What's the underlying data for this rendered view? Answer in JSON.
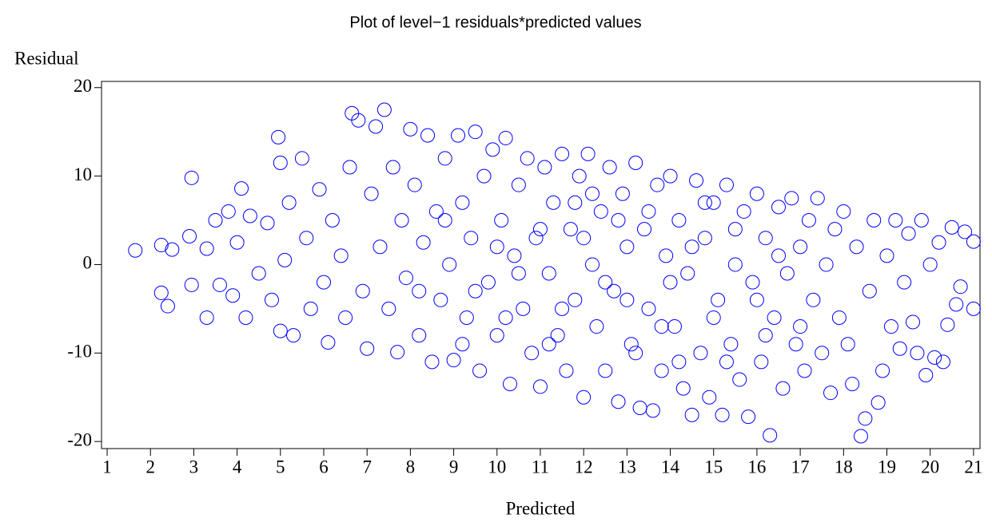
{
  "chart_data": {
    "type": "scatter",
    "title": "Plot of level−1 residuals*predicted values",
    "x_label": "Predicted",
    "y_label": "Residual",
    "color": "#0000ff",
    "xlim": [
      0.87,
      21.15
    ],
    "ylim": [
      -20.8,
      20.7
    ],
    "xticks": [
      1,
      2,
      3,
      4,
      5,
      6,
      7,
      8,
      9,
      10,
      11,
      12,
      13,
      14,
      15,
      16,
      17,
      18,
      19,
      20,
      21
    ],
    "yticks": [
      -20,
      -10,
      0,
      10,
      20
    ],
    "x": [
      1.65,
      2.25,
      2.25,
      2.4,
      2.5,
      2.9,
      2.95,
      2.95,
      3.3,
      3.3,
      3.5,
      3.6,
      3.8,
      3.9,
      4.0,
      4.1,
      4.2,
      4.3,
      4.5,
      4.7,
      4.8,
      4.95,
      5.0,
      5.0,
      5.1,
      5.2,
      5.3,
      5.5,
      5.6,
      5.7,
      5.9,
      6.0,
      6.1,
      6.2,
      6.4,
      6.5,
      6.6,
      6.65,
      6.8,
      6.9,
      7.0,
      7.1,
      7.2,
      7.3,
      7.4,
      7.5,
      7.6,
      7.7,
      7.8,
      7.9,
      8.0,
      8.1,
      8.2,
      8.3,
      8.4,
      8.5,
      8.6,
      8.7,
      8.8,
      8.9,
      9.0,
      9.1,
      9.2,
      9.3,
      9.4,
      9.5,
      9.6,
      9.7,
      9.8,
      9.9,
      10.0,
      10.1,
      10.2,
      10.3,
      10.4,
      10.5,
      10.6,
      10.7,
      10.8,
      10.9,
      11.0,
      11.1,
      11.2,
      11.3,
      11.4,
      11.5,
      11.6,
      11.7,
      11.8,
      11.9,
      12.0,
      12.1,
      12.2,
      12.3,
      12.4,
      12.5,
      12.6,
      12.7,
      12.8,
      12.9,
      13.0,
      13.1,
      13.2,
      13.3,
      13.4,
      13.5,
      13.6,
      13.7,
      13.8,
      13.9,
      14.0,
      14.1,
      14.2,
      14.3,
      14.4,
      14.5,
      14.6,
      14.7,
      14.8,
      14.9,
      15.0,
      15.1,
      15.2,
      15.3,
      15.4,
      15.5,
      15.6,
      15.7,
      15.8,
      15.9,
      16.0,
      16.1,
      16.2,
      16.3,
      16.4,
      16.5,
      16.6,
      16.7,
      16.8,
      16.9,
      17.0,
      17.1,
      17.2,
      17.3,
      17.4,
      17.5,
      17.6,
      17.7,
      17.8,
      17.9,
      18.0,
      18.1,
      18.2,
      18.3,
      18.4,
      18.5,
      18.6,
      18.7,
      18.8,
      18.9,
      19.0,
      19.1,
      19.2,
      19.3,
      19.4,
      19.5,
      19.6,
      19.7,
      19.8,
      19.9,
      20.0,
      20.1,
      20.2,
      20.3,
      20.4,
      20.5,
      20.6,
      20.7,
      20.8,
      21.0,
      21.0,
      9.5,
      10.0,
      10.5,
      11.0,
      11.5,
      12.0,
      12.5,
      13.0,
      13.5,
      14.0,
      14.5,
      15.0,
      15.5,
      16.0,
      16.5,
      17.0,
      12.2,
      13.2,
      14.2,
      11.2,
      10.2,
      15.3,
      16.2,
      11.8,
      12.8,
      13.8,
      14.8,
      9.2,
      8.8,
      8.2
    ],
    "values": [
      1.6,
      2.2,
      -3.2,
      -4.7,
      1.7,
      3.2,
      9.8,
      -2.3,
      -6,
      1.8,
      5,
      -2.3,
      6,
      -3.5,
      2.5,
      8.6,
      -6,
      5.5,
      -1,
      4.7,
      -4,
      14.4,
      11.5,
      -7.5,
      0.5,
      7,
      -8,
      12,
      3,
      -5,
      8.5,
      -2,
      -8.8,
      5,
      1,
      -6,
      11,
      17.1,
      16.3,
      -3,
      -9.5,
      8,
      15.6,
      2,
      17.5,
      -5,
      11,
      -9.9,
      5,
      -1.5,
      15.3,
      9,
      -8,
      2.5,
      14.6,
      -11,
      6,
      -4,
      12,
      0,
      -10.8,
      14.6,
      7,
      -6,
      3,
      15,
      -12,
      10,
      -2,
      13,
      -8,
      5,
      14.3,
      -13.5,
      1,
      9,
      -5,
      12,
      -10,
      3,
      -13.8,
      11,
      -1,
      7,
      -8,
      12.5,
      -12,
      4,
      -4,
      10,
      -15,
      12.5,
      0,
      -7,
      6,
      -12,
      11,
      -3,
      -15.5,
      8,
      2,
      -9,
      11.5,
      -16.2,
      4,
      -5,
      -16.5,
      9,
      -12,
      1,
      10,
      -7,
      5,
      -14,
      -1,
      -17,
      9.5,
      -10,
      3,
      -15,
      7,
      -4,
      -17,
      9,
      -9,
      0,
      -13,
      6,
      -17.2,
      -2,
      8,
      -11,
      3,
      -19.3,
      -6,
      6.5,
      -14,
      -1,
      7.5,
      -9,
      2,
      -12,
      5,
      -4,
      7.5,
      -10,
      0,
      -14.5,
      4,
      -6,
      6,
      -9,
      -13.5,
      2,
      -19.4,
      -17.4,
      -3,
      5,
      -15.6,
      -12,
      1,
      -7,
      5,
      -9.5,
      -2,
      3.5,
      -6.5,
      -10,
      5,
      -12.5,
      0,
      -10.5,
      2.5,
      -11,
      -6.8,
      4.2,
      -4.5,
      -2.5,
      3.7,
      2.6,
      -5,
      -3,
      2,
      -1,
      4,
      -5,
      3,
      -2,
      -4,
      6,
      -2,
      2,
      -6,
      4,
      -4,
      1,
      -7,
      8,
      -10,
      -11,
      -9,
      -6,
      -11,
      -8,
      7,
      5,
      -7,
      7,
      -9,
      5,
      -3
    ]
  }
}
